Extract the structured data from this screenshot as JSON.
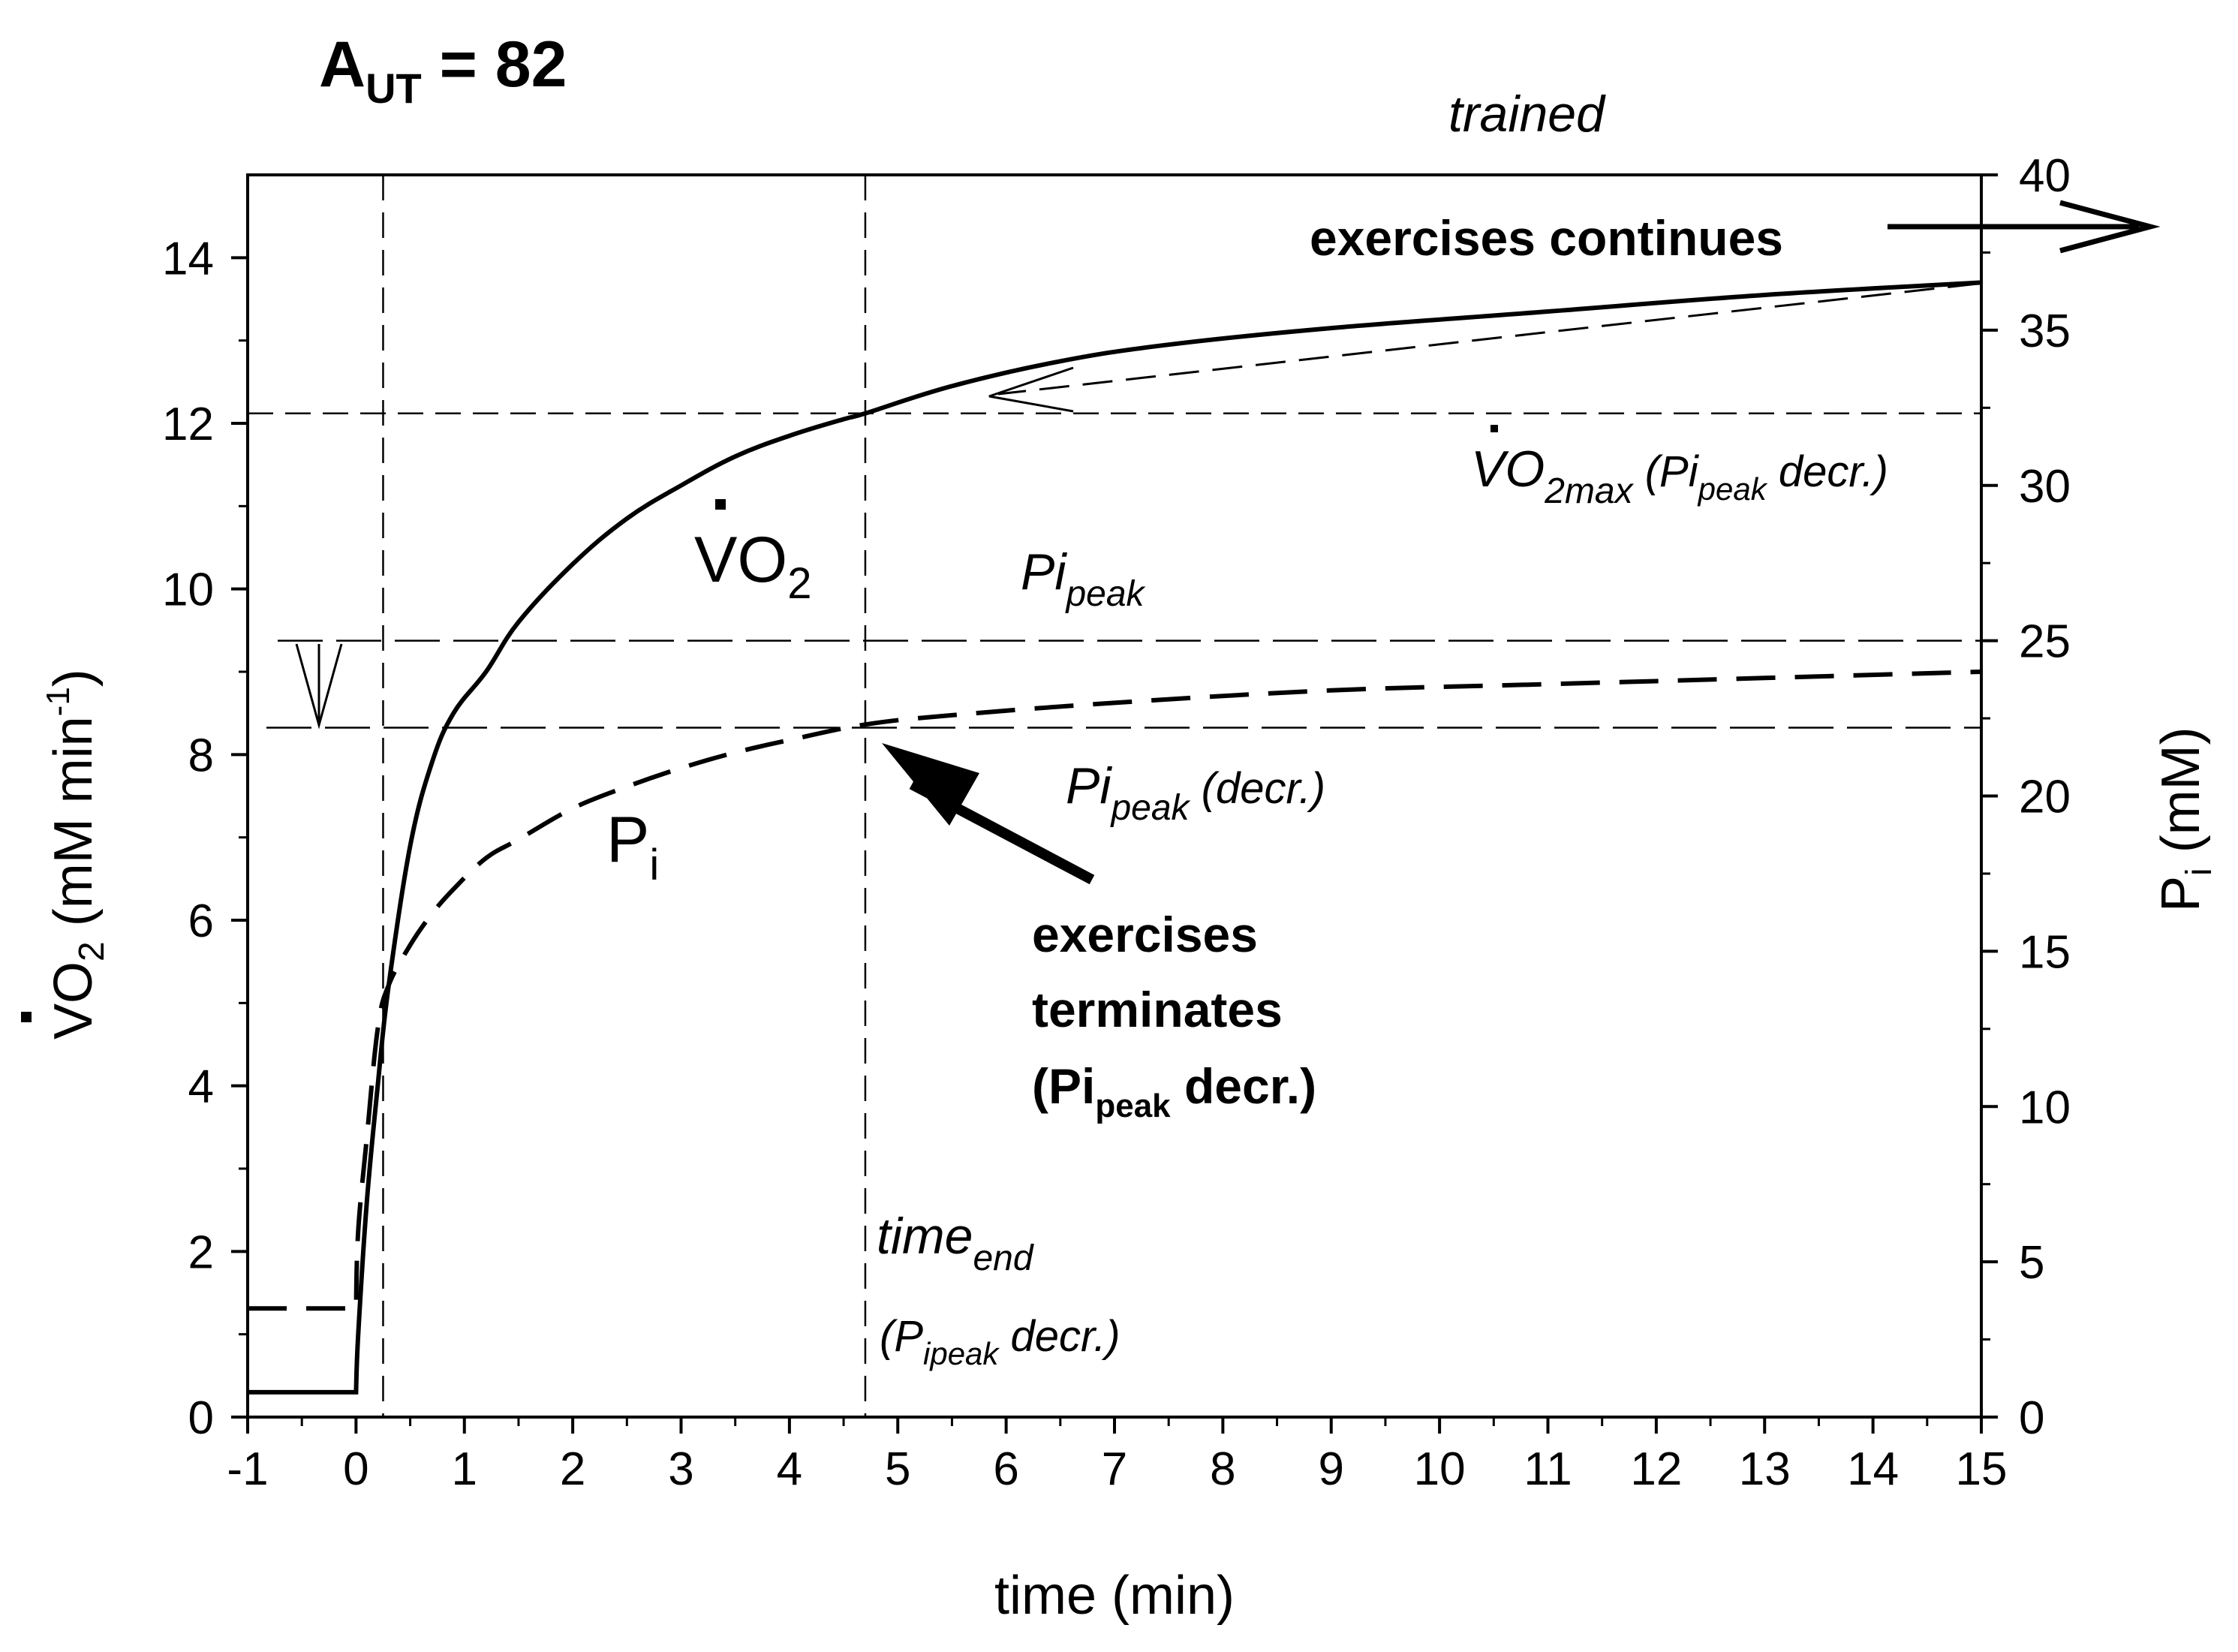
{
  "chart_data": {
    "type": "line",
    "title": {
      "main": "A",
      "sub": "UT",
      "rest": " = 82"
    },
    "subtitle": "trained",
    "xlabel": "time (min)",
    "ylabel_left": {
      "main": "VO",
      "sub": "2",
      "rest": " (mM min",
      "sup": "-1",
      "end": ")"
    },
    "ylabel_right": {
      "main": "P",
      "sub": "i",
      "rest": " (mM)"
    },
    "xlim": [
      -1,
      15
    ],
    "ylim_left": [
      0,
      15
    ],
    "ylim_right": [
      0,
      40
    ],
    "x_ticks": [
      "-1",
      "0",
      "1",
      "2",
      "3",
      "4",
      "5",
      "6",
      "7",
      "8",
      "9",
      "10",
      "11",
      "12",
      "13",
      "14",
      "15"
    ],
    "y_left_ticks": [
      "0",
      "2",
      "4",
      "6",
      "8",
      "10",
      "12",
      "14"
    ],
    "y_right_ticks": [
      "0",
      "5",
      "10",
      "15",
      "20",
      "25",
      "30",
      "35",
      "40"
    ],
    "series": [
      {
        "name": "VO2",
        "axis": "left",
        "style": "solid",
        "label": {
          "main": "VO",
          "sub": "2"
        },
        "x": [
          -1,
          0,
          0.02,
          0.1,
          0.2,
          0.3,
          0.5,
          0.7,
          0.9,
          1.2,
          1.5,
          2.0,
          2.5,
          3.0,
          3.5,
          4.0,
          4.5,
          4.7,
          5.5,
          6.5,
          7.5,
          9,
          11,
          13,
          15
        ],
        "values": [
          0.3,
          0.3,
          1.0,
          2.6,
          4.0,
          5.2,
          6.9,
          7.9,
          8.5,
          9.0,
          9.6,
          10.3,
          10.85,
          11.25,
          11.6,
          11.85,
          12.05,
          12.12,
          12.45,
          12.75,
          12.95,
          13.15,
          13.35,
          13.55,
          13.7
        ]
      },
      {
        "name": "Pi",
        "axis": "right",
        "style": "dashed",
        "label": {
          "main": "P",
          "sub": "i"
        },
        "x": [
          -1,
          0,
          0.02,
          0.1,
          0.2,
          0.3,
          0.5,
          0.7,
          0.9,
          1.2,
          1.5,
          2.0,
          2.5,
          3.0,
          3.5,
          4.0,
          4.7,
          5.5,
          7,
          9,
          11,
          13,
          15
        ],
        "values": [
          3.5,
          3.5,
          6,
          9,
          12.5,
          13.9,
          15.2,
          16.2,
          17.0,
          18.0,
          18.6,
          19.6,
          20.3,
          20.9,
          21.4,
          21.8,
          22.3,
          22.6,
          23.0,
          23.4,
          23.6,
          23.8,
          24.0
        ]
      }
    ],
    "reference_lines": {
      "vo2max_decr": 12.12,
      "pi_peak": 25.0,
      "pi_peak_decr": 22.2,
      "x_on": 0.25,
      "x_end": 4.7
    },
    "annotations": {
      "exercise_continues": "exercises continues",
      "vo2max_label": {
        "main": "VO",
        "sub": "2max",
        "paren": " (Pi",
        "paren_sub": "peak",
        "paren_end": " decr.)"
      },
      "pi_peak_label": {
        "main": "Pi",
        "sub": "peak"
      },
      "pi_peak_decr_label": {
        "main": "Pi",
        "sub": "peak",
        "paren": " (decr.)"
      },
      "exercise_terminates": {
        "line1": "exercises",
        "line2": "terminates",
        "line3_main": "(Pi",
        "line3_sub": "peak",
        "line3_end": " decr.)"
      },
      "time_end": {
        "main": "time",
        "sub": "end"
      },
      "time_end_decr": {
        "main": "(P",
        "sub": "ipeak",
        "end": " decr.)"
      }
    }
  }
}
